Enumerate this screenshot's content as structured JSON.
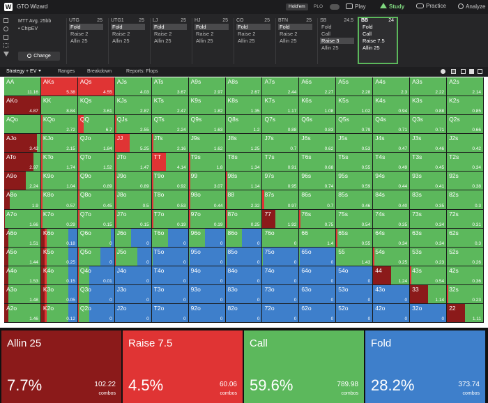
{
  "app": {
    "logo": "W",
    "title": "GTO Wizard"
  },
  "top_nav": {
    "game_pills": [
      "Hold'em",
      "PLO"
    ],
    "items": [
      {
        "label": "Play",
        "icon": "play-icon",
        "active": false
      },
      {
        "label": "Study",
        "icon": "study-icon",
        "active": true
      },
      {
        "label": "Practice",
        "icon": "practice-icon",
        "active": false
      },
      {
        "label": "Analyze",
        "icon": "analyze-icon",
        "active": false
      }
    ]
  },
  "settings": {
    "format": "MTT Avg. 25bb",
    "model": "• ChipEV",
    "change_button": "Change"
  },
  "positions": [
    {
      "name": "UTG",
      "stack": "25",
      "actions": [
        "Fold",
        "Raise 2",
        "Allin 25"
      ],
      "selected": 0,
      "active": false
    },
    {
      "name": "UTG1",
      "stack": "25",
      "actions": [
        "Fold",
        "Raise 2",
        "Allin 25"
      ],
      "selected": 0,
      "active": false
    },
    {
      "name": "LJ",
      "stack": "25",
      "actions": [
        "Fold",
        "Raise 2",
        "Allin 25"
      ],
      "selected": 0,
      "active": false
    },
    {
      "name": "HJ",
      "stack": "25",
      "actions": [
        "Fold",
        "Raise 2",
        "Allin 25"
      ],
      "selected": 0,
      "active": false
    },
    {
      "name": "CO",
      "stack": "25",
      "actions": [
        "Fold",
        "Raise 2",
        "Allin 25"
      ],
      "selected": 0,
      "active": false
    },
    {
      "name": "BTN",
      "stack": "25",
      "actions": [
        "Fold",
        "Raise 2",
        "Allin 25"
      ],
      "selected": 0,
      "active": false
    },
    {
      "name": "SB",
      "stack": "24.5",
      "actions": [
        "Fold",
        "Call",
        "Raise 3",
        "Allin 25"
      ],
      "selected": 2,
      "active": false
    },
    {
      "name": "BB",
      "stack": "24",
      "actions": [
        "Fold",
        "Call",
        "Raise 7.5",
        "Allin 25"
      ],
      "selected": -1,
      "active": true
    }
  ],
  "tabs": [
    "Strategy + EV",
    "Ranges",
    "Breakdown",
    "Reports: Flops"
  ],
  "colors": {
    "allin": "#8b1a1a",
    "raise": "#e03434",
    "call": "#5cb85c",
    "fold": "#3e7fcb"
  },
  "grid": {
    "cols": [
      "A",
      "K",
      "Q",
      "J",
      "T",
      "9",
      "8",
      "7",
      "6",
      "5",
      "4",
      "3",
      "2"
    ],
    "ev": [
      [
        "11.16",
        "5.38",
        "4.55",
        "4.03",
        "3.67",
        "2.97",
        "2.67",
        "2.44",
        "2.27",
        "2.28",
        "2.3",
        "2.22",
        "2.14"
      ],
      [
        "4.87",
        "8.84",
        "3.61",
        "2.87",
        "2.47",
        "1.82",
        "1.35",
        "1.17",
        "1.08",
        "1.02",
        "0.94",
        "0.88",
        "0.85"
      ],
      [
        "",
        "2.72",
        "6.7",
        "2.55",
        "2.24",
        "1.63",
        "1.2",
        "0.88",
        "0.83",
        "0.79",
        "0.71",
        "0.71",
        "0.66"
      ],
      [
        "3.42",
        "2.15",
        "1.84",
        "5.25",
        "2.16",
        "1.62",
        "1.25",
        "0.7",
        "0.62",
        "0.53",
        "0.47",
        "0.46",
        "0.42"
      ],
      [
        "2.97",
        "1.74",
        "1.52",
        "1.47",
        "4.14",
        "1.8",
        "1.34",
        "0.91",
        "0.68",
        "0.55",
        "0.49",
        "0.45",
        "0.34"
      ],
      [
        "2.24",
        "1.04",
        "0.89",
        "0.89",
        "0.92",
        "3.07",
        "1.14",
        "0.95",
        "0.74",
        "0.59",
        "0.44",
        "0.41",
        "0.38"
      ],
      [
        "1.9",
        "0.57",
        "0.45",
        "0.5",
        "0.53",
        "0.44",
        "2.32",
        "0.97",
        "0.7",
        "0.46",
        "0.40",
        "0.35",
        "0.3"
      ],
      [
        "1.66",
        "0.29",
        "0.15",
        "0.15",
        "0.19",
        "0.19",
        "0.25",
        "1.92",
        "0.75",
        "0.54",
        "0.35",
        "0.34",
        "0.31"
      ],
      [
        "1.51",
        "0.18",
        "0",
        "0",
        "0",
        "0",
        "0",
        "0",
        "1.4",
        "0.55",
        "0.34",
        "0.34",
        "0.3"
      ],
      [
        "1.44",
        "0.25",
        "0",
        "0",
        "0",
        "0",
        "0",
        "0",
        "0",
        "1.43",
        "0.25",
        "0.23",
        "0.26"
      ],
      [
        "1.53",
        "0.15",
        "0.01",
        "0",
        "0",
        "0",
        "0",
        "0",
        "0",
        "0",
        "1.24",
        "0.54",
        "0.36"
      ],
      [
        "1.48",
        "0.05",
        "0",
        "0",
        "0",
        "0",
        "0",
        "0",
        "0",
        "0",
        "0",
        "1.14",
        "0.23"
      ],
      [
        "1.46",
        "0.12",
        "0",
        "0",
        "0",
        "0",
        "0",
        "0",
        "0",
        "0",
        "0",
        "0",
        "1.11"
      ]
    ]
  },
  "summary": [
    {
      "label": "Allin 25",
      "pct": "7.7%",
      "combos": "102.22",
      "unit": "combos",
      "color": "#8b1a1a"
    },
    {
      "label": "Raise 7.5",
      "pct": "4.5%",
      "combos": "60.06",
      "unit": "combos",
      "color": "#e03434"
    },
    {
      "label": "Call",
      "pct": "59.6%",
      "combos": "789.98",
      "unit": "combos",
      "color": "#5cb85c"
    },
    {
      "label": "Fold",
      "pct": "28.2%",
      "combos": "373.74",
      "unit": "combos",
      "color": "#3e7fcb"
    }
  ]
}
